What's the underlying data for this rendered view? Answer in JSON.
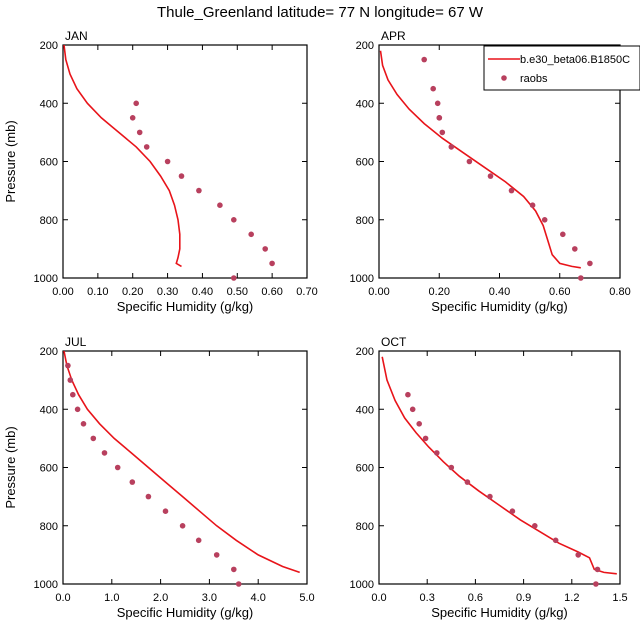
{
  "page": {
    "title": "Thule_Greenland  latitude= 77 N longitude= 67 W"
  },
  "colors": {
    "model": "#e8141a",
    "obs": "#b8405e",
    "axis": "#000000"
  },
  "chart_data": [
    {
      "type": "line",
      "month": "JAN",
      "xlabel": "Specific Humidity (g/kg)",
      "ylabel": "Pressure (mb)",
      "xlim": [
        0,
        0.7
      ],
      "ylim": [
        200,
        1000
      ],
      "y_inverted": true,
      "xticks": [
        "0.00",
        "0.10",
        "0.20",
        "0.30",
        "0.40",
        "0.50",
        "0.60",
        "0.70"
      ],
      "xtick_values": [
        0,
        0.1,
        0.2,
        0.3,
        0.4,
        0.5,
        0.6,
        0.7
      ],
      "yticks": [
        "200",
        "400",
        "600",
        "800",
        "1000"
      ],
      "ytick_values": [
        200,
        400,
        600,
        800,
        1000
      ],
      "series": [
        {
          "kind": "line",
          "x": [
            0.003,
            0.008,
            0.02,
            0.04,
            0.07,
            0.11,
            0.16,
            0.21,
            0.25,
            0.28,
            0.305,
            0.32,
            0.33,
            0.335,
            0.335,
            0.33,
            0.325,
            0.34
          ],
          "y": [
            200,
            250,
            300,
            350,
            400,
            450,
            500,
            550,
            600,
            650,
            700,
            750,
            800,
            850,
            900,
            930,
            950,
            960
          ]
        },
        {
          "kind": "scatter",
          "x": [
            0.21,
            0.2,
            0.22,
            0.24,
            0.3,
            0.34,
            0.39,
            0.45,
            0.49,
            0.54,
            0.58,
            0.6,
            0.49
          ],
          "y": [
            400,
            450,
            500,
            550,
            600,
            650,
            700,
            750,
            800,
            850,
            900,
            950,
            1000
          ]
        }
      ]
    },
    {
      "type": "line",
      "month": "APR",
      "xlabel": "Specific Humidity (g/kg)",
      "ylabel": "",
      "xlim": [
        0,
        0.8
      ],
      "ylim": [
        200,
        1000
      ],
      "y_inverted": true,
      "xticks": [
        "0.00",
        "0.20",
        "0.40",
        "0.60",
        "0.80"
      ],
      "xtick_values": [
        0,
        0.2,
        0.4,
        0.6,
        0.8
      ],
      "yticks": [
        "200",
        "400",
        "600",
        "800",
        "1000"
      ],
      "ytick_values": [
        200,
        400,
        600,
        800,
        1000
      ],
      "legend": {
        "placement": "top-right",
        "entries": [
          "b.e30_beta06.B1850C",
          "raobs"
        ]
      },
      "series": [
        {
          "name": "b.e30_beta06.B1850C",
          "kind": "line",
          "x": [
            0.005,
            0.012,
            0.03,
            0.06,
            0.1,
            0.15,
            0.21,
            0.28,
            0.35,
            0.42,
            0.48,
            0.52,
            0.545,
            0.56,
            0.575,
            0.6,
            0.64,
            0.67
          ],
          "y": [
            220,
            270,
            320,
            370,
            420,
            470,
            520,
            570,
            620,
            670,
            720,
            770,
            820,
            870,
            920,
            950,
            960,
            965
          ]
        },
        {
          "name": "raobs",
          "kind": "scatter",
          "x": [
            0.15,
            0.18,
            0.195,
            0.2,
            0.2,
            0.21,
            0.24,
            0.3,
            0.37,
            0.44,
            0.51,
            0.55,
            0.61,
            0.65,
            0.7,
            0.67
          ],
          "y": [
            250,
            350,
            400,
            450,
            450,
            500,
            550,
            600,
            650,
            700,
            750,
            800,
            850,
            900,
            950,
            1000
          ]
        }
      ]
    },
    {
      "type": "line",
      "month": "JUL",
      "xlabel": "Specific Humidity (g/kg)",
      "ylabel": "Pressure (mb)",
      "xlim": [
        0,
        5
      ],
      "ylim": [
        200,
        1000
      ],
      "y_inverted": true,
      "xticks": [
        "0.0",
        "1.0",
        "2.0",
        "3.0",
        "4.0",
        "5.0"
      ],
      "xtick_values": [
        0,
        1,
        2,
        3,
        4,
        5
      ],
      "yticks": [
        "200",
        "400",
        "600",
        "800",
        "1000"
      ],
      "ytick_values": [
        200,
        400,
        600,
        800,
        1000
      ],
      "series": [
        {
          "kind": "line",
          "x": [
            0.02,
            0.08,
            0.18,
            0.32,
            0.5,
            0.75,
            1.05,
            1.4,
            1.75,
            2.1,
            2.45,
            2.8,
            3.15,
            3.55,
            4.0,
            4.5,
            4.85
          ],
          "y": [
            200,
            250,
            300,
            350,
            400,
            450,
            500,
            550,
            600,
            650,
            700,
            750,
            800,
            850,
            900,
            940,
            960
          ]
        },
        {
          "kind": "scatter",
          "x": [
            0.1,
            0.15,
            0.2,
            0.3,
            0.42,
            0.62,
            0.85,
            1.12,
            1.42,
            1.75,
            2.1,
            2.45,
            2.78,
            3.15,
            3.5,
            3.6
          ],
          "y": [
            250,
            300,
            350,
            400,
            450,
            500,
            550,
            600,
            650,
            700,
            750,
            800,
            850,
            900,
            950,
            1000
          ]
        }
      ]
    },
    {
      "type": "line",
      "month": "OCT",
      "xlabel": "Specific Humidity (g/kg)",
      "ylabel": "",
      "xlim": [
        0,
        1.5
      ],
      "ylim": [
        200,
        1000
      ],
      "y_inverted": true,
      "xticks": [
        "0.0",
        "0.3",
        "0.6",
        "0.9",
        "1.2",
        "1.5"
      ],
      "xtick_values": [
        0,
        0.3,
        0.6,
        0.9,
        1.2,
        1.5
      ],
      "yticks": [
        "200",
        "400",
        "600",
        "800",
        "1000"
      ],
      "ytick_values": [
        200,
        400,
        600,
        800,
        1000
      ],
      "series": [
        {
          "kind": "line",
          "x": [
            0.02,
            0.05,
            0.1,
            0.16,
            0.23,
            0.31,
            0.4,
            0.5,
            0.62,
            0.75,
            0.88,
            1.0,
            1.12,
            1.24,
            1.31,
            1.34,
            1.4,
            1.48
          ],
          "y": [
            220,
            300,
            370,
            430,
            480,
            530,
            580,
            630,
            680,
            730,
            780,
            820,
            860,
            890,
            910,
            950,
            960,
            965
          ]
        },
        {
          "kind": "scatter",
          "x": [
            0.18,
            0.21,
            0.25,
            0.29,
            0.36,
            0.45,
            0.55,
            0.69,
            0.83,
            0.97,
            1.1,
            1.24,
            1.36,
            1.35
          ],
          "y": [
            350,
            400,
            450,
            500,
            550,
            600,
            650,
            700,
            750,
            800,
            850,
            900,
            950,
            1000
          ]
        }
      ]
    }
  ]
}
